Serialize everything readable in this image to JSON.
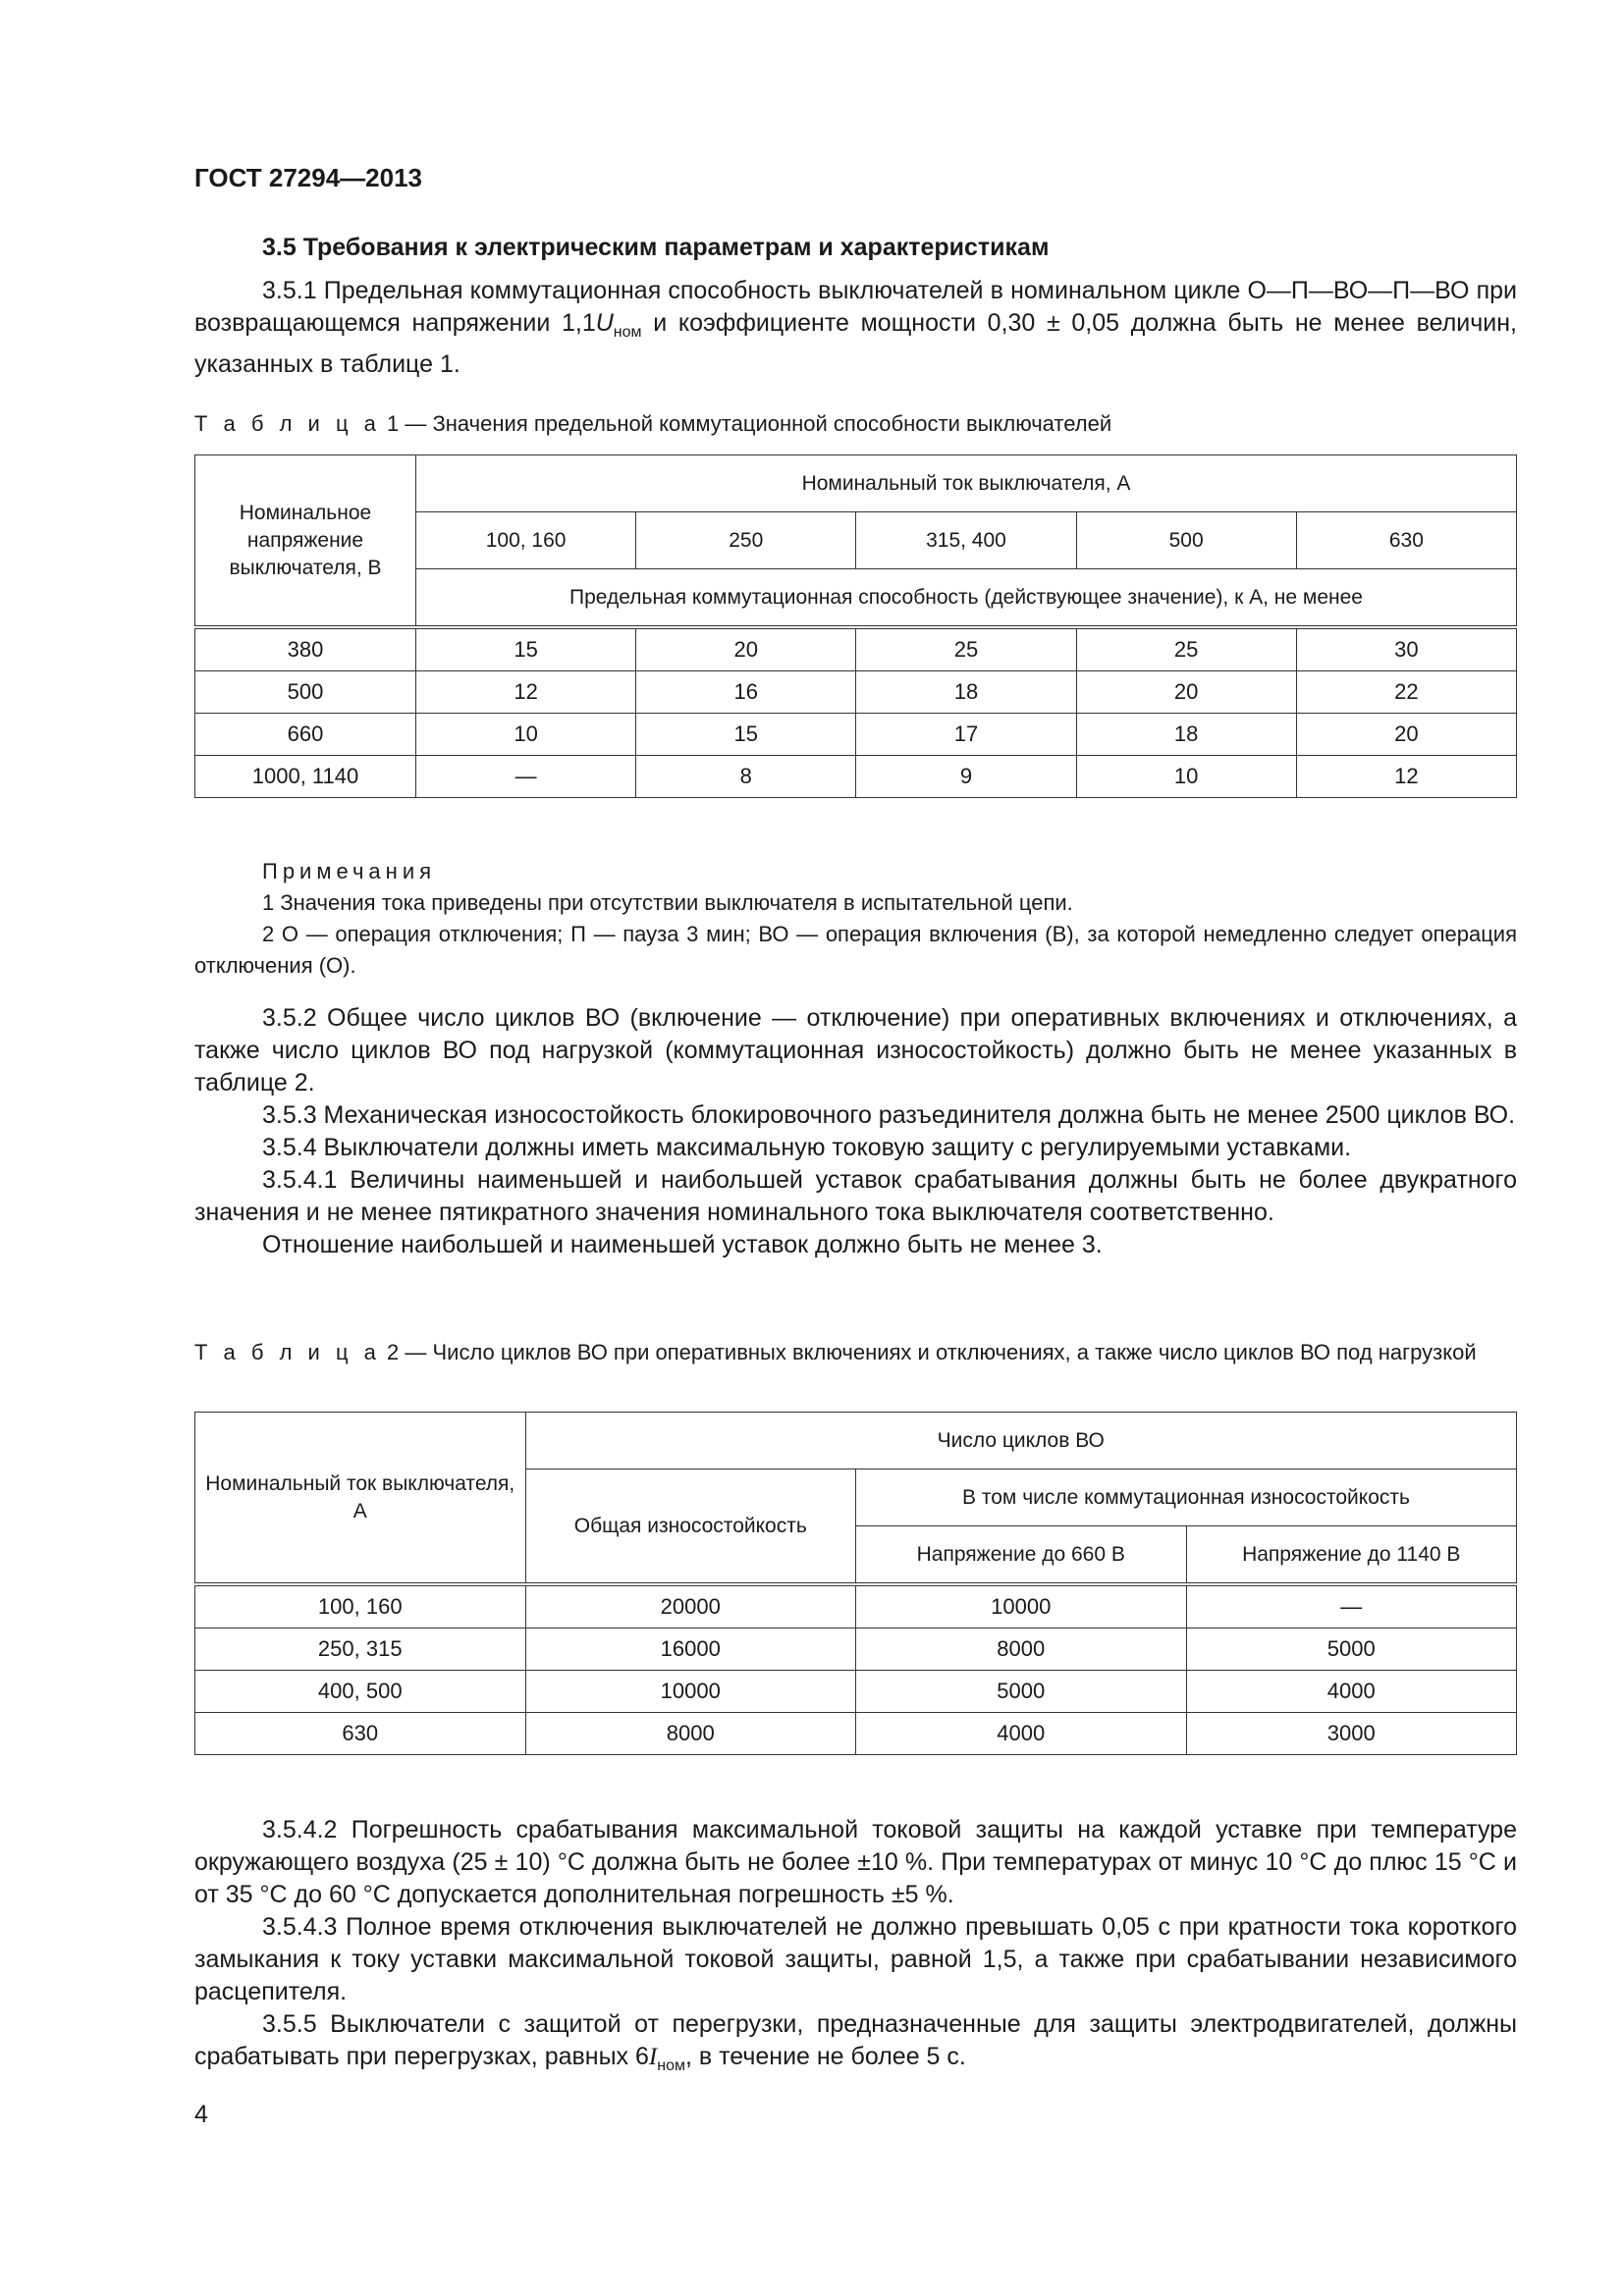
{
  "header": {
    "doc_id": "ГОСТ 27294—2013"
  },
  "section": {
    "title": "3.5  Требования к электрическим параметрам и характеристикам"
  },
  "p351": {
    "a": "3.5.1 Предельная коммутационная способность выключателей в номинальном цикле О—П—ВО—П—ВО при возвращающемся напряжении 1,1",
    "var": "U",
    "sub": "ном",
    "b": " и коэффициенте мощности 0,30 ± 0,05 должна быть не менее величин, указанных в таблице 1."
  },
  "table1": {
    "caption_label": "Т а б л и ц а",
    "caption_text": " 1 — Значения предельной коммутационной способности выключателей",
    "row_header": "Номинальное напряжение выключателя, В",
    "group_header": "Номинальный ток выключателя, А",
    "columns": [
      "100, 160",
      "250",
      "315, 400",
      "500",
      "630"
    ],
    "sub_header": "Предельная коммутационная способность (действующее значение), к А, не менее",
    "rows": [
      [
        "380",
        "15",
        "20",
        "25",
        "25",
        "30"
      ],
      [
        "500",
        "12",
        "16",
        "18",
        "20",
        "22"
      ],
      [
        "660",
        "10",
        "15",
        "17",
        "18",
        "20"
      ],
      [
        "1000, 1140",
        "—",
        "8",
        "9",
        "10",
        "12"
      ]
    ]
  },
  "notes": {
    "title": "Примечания",
    "items": [
      "1  Значения тока приведены при отсутствии выключателя в испытательной цепи.",
      "2  О — операция отключения; П — пауза 3 мин; ВО — операция включения (В), за которой немедленно следует операция отключения (О)."
    ]
  },
  "paras_mid": [
    "3.5.2  Общее число циклов ВО (включение — отключение) при оперативных включениях и отключениях, а также число циклов ВО под нагрузкой (коммутационная износостойкость) должно быть не менее указанных в таблице 2.",
    "3.5.3  Механическая износостойкость блокировочного разъединителя должна быть не менее 2500 циклов ВО.",
    "3.5.4  Выключатели должны иметь максимальную токовую защиту с регулируемыми уставками.",
    "3.5.4.1  Величины наименьшей и наибольшей уставок срабатывания должны быть не более двукратного значения и не менее пятикратного значения номинального тока выключателя соответственно.",
    "Отношение наибольшей и наименьшей уставок должно быть не менее 3."
  ],
  "table2": {
    "caption_label": "Т а б л и ц а",
    "caption_text": " 2 — Число циклов ВО при оперативных включениях и отключениях, а также число циклов ВО под нагрузкой",
    "row_header": "Номинальный ток выключателя, А",
    "group_header": "Число циклов ВО",
    "total_header": "Общая износостойкость",
    "sub_group_header": "В том числе коммутационная износостойкость",
    "sub_columns": [
      "Напряжение до 660 В",
      "Напряжение до 1140 В"
    ],
    "rows": [
      [
        "100, 160",
        "20000",
        "10000",
        "—"
      ],
      [
        "250, 315",
        "16000",
        "8000",
        "5000"
      ],
      [
        "400, 500",
        "10000",
        "5000",
        "4000"
      ],
      [
        "630",
        "8000",
        "4000",
        "3000"
      ]
    ]
  },
  "paras_end": [
    "3.5.4.2  Погрешность срабатывания максимальной токовой защиты на каждой уставке при температуре окружающего воздуха (25 ± 10) °С должна быть не более ±10 %. При температурах от минус 10 °С до плюс 15 °С и от 35 °С до 60 °С допускается дополнительная погрешность ±5 %.",
    "3.5.4.3  Полное время отключения выключателей не должно превышать 0,05 с при кратности тока короткого замыкания к току уставки максимальной токовой защиты, равной 1,5, а также при срабатывании независимого расцепителя."
  ],
  "p355": {
    "a": "3.5.5  Выключатели с защитой от перегрузки, предназначенные для защиты электродвигателей, должны срабатывать при перегрузках, равных 6",
    "var": "I",
    "sub": "ном",
    "b": ", в течение не более 5 с."
  },
  "page_number": "4"
}
